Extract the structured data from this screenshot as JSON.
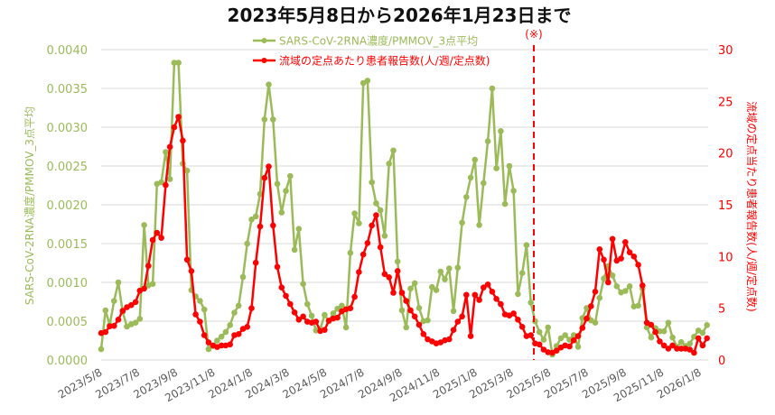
{
  "page": {
    "title": "2023年5月8日から2026年1月23日まで"
  },
  "legend": {
    "position": "top",
    "items": [
      {
        "label": "SARS-CoV-2RNA濃度/PMMOV_3点平均",
        "color": "#9BBB59"
      },
      {
        "label": "流域の定点あたり患者報告数(人/週/定点数)",
        "color": "#FF0000"
      }
    ]
  },
  "chart_data": {
    "type": "line",
    "title": "2023年5月8日から2026年1月23日まで",
    "grid": true,
    "legend_position": "top",
    "x_tick_labels": [
      "2023/5/8",
      "2023/7/8",
      "2023/9/8",
      "2023/11/8",
      "2024/1/8",
      "2024/3/8",
      "2024/5/8",
      "2024/7/8",
      "2024/9/8",
      "2024/11/8",
      "2025/1/8",
      "2025/3/8",
      "2025/5/8",
      "2025/7/8",
      "2025/9/8",
      "2025/11/8",
      "2026/1/8"
    ],
    "y_left": {
      "label": "SARS-CoV-2RNA濃度/PMMOV_3点平均",
      "range": [
        0,
        0.004
      ],
      "tick_labels": [
        "0.0000",
        "0.0005",
        "0.0010",
        "0.0015",
        "0.0020",
        "0.0025",
        "0.0030",
        "0.0035",
        "0.0040"
      ],
      "color": "#9BBB59"
    },
    "y_right": {
      "label": "流域の定点当たり患者報告数(人/週/定点数)",
      "range": [
        0,
        30
      ],
      "tick_labels": [
        "0",
        "5",
        "10",
        "15",
        "20",
        "25",
        "30"
      ],
      "color": "#FF0000"
    },
    "annotations": [
      {
        "type": "vline",
        "label": "(※)",
        "x": "2025/4/12",
        "style": "dashed",
        "color": "#FF0000"
      }
    ],
    "x": [
      "2023/5/8",
      "2023/5/15",
      "2023/5/22",
      "2023/5/29",
      "2023/6/5",
      "2023/6/12",
      "2023/6/19",
      "2023/6/26",
      "2023/7/3",
      "2023/7/10",
      "2023/7/17",
      "2023/7/24",
      "2023/7/31",
      "2023/8/7",
      "2023/8/14",
      "2023/8/21",
      "2023/8/28",
      "2023/9/4",
      "2023/9/11",
      "2023/9/18",
      "2023/9/25",
      "2023/10/2",
      "2023/10/9",
      "2023/10/16",
      "2023/10/23",
      "2023/10/30",
      "2023/11/6",
      "2023/11/13",
      "2023/11/20",
      "2023/11/27",
      "2023/12/4",
      "2023/12/11",
      "2023/12/18",
      "2023/12/25",
      "2024/1/1",
      "2024/1/8",
      "2024/1/15",
      "2024/1/22",
      "2024/1/29",
      "2024/2/5",
      "2024/2/12",
      "2024/2/19",
      "2024/2/26",
      "2024/3/4",
      "2024/3/11",
      "2024/3/18",
      "2024/3/25",
      "2024/4/1",
      "2024/4/8",
      "2024/4/15",
      "2024/4/22",
      "2024/4/29",
      "2024/5/6",
      "2024/5/13",
      "2024/5/20",
      "2024/5/27",
      "2024/6/3",
      "2024/6/10",
      "2024/6/17",
      "2024/6/24",
      "2024/7/1",
      "2024/7/8",
      "2024/7/15",
      "2024/7/22",
      "2024/7/29",
      "2024/8/5",
      "2024/8/12",
      "2024/8/19",
      "2024/8/26",
      "2024/9/2",
      "2024/9/9",
      "2024/9/16",
      "2024/9/23",
      "2024/9/30",
      "2024/10/7",
      "2024/10/14",
      "2024/10/21",
      "2024/10/28",
      "2024/11/4",
      "2024/11/11",
      "2024/11/18",
      "2024/11/25",
      "2024/12/2",
      "2024/12/9",
      "2024/12/16",
      "2024/12/23",
      "2024/12/30",
      "2025/1/6",
      "2025/1/13",
      "2025/1/20",
      "2025/1/27",
      "2025/2/3",
      "2025/2/10",
      "2025/2/17",
      "2025/2/24",
      "2025/3/3",
      "2025/3/10",
      "2025/3/17",
      "2025/3/24",
      "2025/3/31",
      "2025/4/7",
      "2025/4/14",
      "2025/4/21",
      "2025/4/28",
      "2025/5/5",
      "2025/5/12",
      "2025/5/19",
      "2025/5/26",
      "2025/6/2",
      "2025/6/9",
      "2025/6/16",
      "2025/6/23",
      "2025/6/30",
      "2025/7/7",
      "2025/7/14",
      "2025/7/21",
      "2025/7/28",
      "2025/8/4",
      "2025/8/11",
      "2025/8/18",
      "2025/8/25",
      "2025/9/1",
      "2025/9/8",
      "2025/9/15",
      "2025/9/22",
      "2025/9/29",
      "2025/10/6",
      "2025/10/13",
      "2025/10/20",
      "2025/10/27",
      "2025/11/3",
      "2025/11/10",
      "2025/11/17",
      "2025/11/24",
      "2025/12/1",
      "2025/12/8",
      "2025/12/15",
      "2025/12/22",
      "2025/12/29",
      "2026/1/5",
      "2026/1/12",
      "2026/1/19"
    ],
    "series": [
      {
        "name": "SARS-CoV-2RNA濃度/PMMOV_3点平均",
        "axis": "left",
        "color": "#9BBB59",
        "values": [
          0.00014,
          0.00064,
          0.00045,
          0.00076,
          0.001,
          0.00062,
          0.00043,
          0.00046,
          0.00048,
          0.00053,
          0.00174,
          0.00096,
          0.00098,
          0.00227,
          0.00229,
          0.00268,
          0.00233,
          0.00383,
          0.00383,
          0.00253,
          0.00244,
          0.0009,
          0.00082,
          0.00076,
          0.00065,
          0.00014,
          0.00018,
          0.00025,
          0.0003,
          0.00036,
          0.00045,
          0.00061,
          0.0007,
          0.00107,
          0.0015,
          0.00181,
          0.00185,
          0.00214,
          0.0031,
          0.00355,
          0.0031,
          0.00227,
          0.0019,
          0.00218,
          0.00237,
          0.00142,
          0.00169,
          0.00098,
          0.00072,
          0.00057,
          0.00038,
          0.0004,
          0.00058,
          0.0005,
          0.0006,
          0.00066,
          0.0007,
          0.00042,
          0.00138,
          0.00189,
          0.00176,
          0.00357,
          0.0036,
          0.00229,
          0.00202,
          0.00193,
          0.0016,
          0.00253,
          0.0027,
          0.00127,
          0.00064,
          0.00042,
          0.00092,
          0.00099,
          0.00067,
          0.0005,
          0.00051,
          0.00094,
          0.0009,
          0.00114,
          0.00104,
          0.00118,
          0.00063,
          0.00119,
          0.00177,
          0.0021,
          0.00235,
          0.00258,
          0.00174,
          0.00228,
          0.00282,
          0.0035,
          0.00247,
          0.00295,
          0.00201,
          0.0025,
          0.00218,
          0.00085,
          0.00112,
          0.00148,
          0.00074,
          0.0005,
          0.00036,
          0.00026,
          0.00042,
          7e-05,
          0.00018,
          0.00028,
          0.00032,
          0.00026,
          0.00032,
          0.00017,
          0.00054,
          0.00067,
          0.00051,
          0.00048,
          0.0008,
          0.00105,
          0.00121,
          0.00109,
          0.00095,
          0.00087,
          0.00089,
          0.00095,
          0.00069,
          0.0007,
          0.00092,
          0.00042,
          0.00029,
          0.00041,
          0.00037,
          0.00037,
          0.00048,
          0.00029,
          0.00017,
          0.00023,
          0.00018,
          0.00021,
          0.0003,
          0.00038,
          0.00035,
          0.00045
        ]
      },
      {
        "name": "流域の定点あたり患者報告数(人/週/定点数)",
        "axis": "right",
        "color": "#FF0000",
        "values": [
          2.6,
          2.7,
          3.25,
          3.3,
          3.9,
          4.75,
          5.1,
          5.3,
          5.6,
          6.7,
          6.9,
          9.1,
          11.6,
          12.3,
          11.8,
          16.9,
          20.6,
          22.5,
          23.5,
          21.2,
          9.7,
          8.6,
          4.4,
          3.7,
          2.4,
          1.7,
          1.4,
          1.25,
          1.4,
          1.4,
          1.5,
          2.4,
          2.5,
          3.0,
          3.2,
          5.0,
          9.4,
          12.9,
          17.6,
          18.7,
          13.0,
          9.0,
          7.0,
          6.2,
          5.4,
          4.6,
          3.9,
          4.2,
          3.7,
          3.6,
          3.7,
          2.8,
          2.9,
          3.8,
          4.0,
          4.1,
          4.7,
          4.9,
          5.0,
          6.1,
          8.5,
          10.2,
          11.3,
          13.0,
          14.0,
          10.9,
          8.3,
          8.0,
          6.5,
          8.6,
          6.5,
          5.7,
          4.8,
          4.2,
          3.4,
          2.5,
          2.0,
          1.8,
          1.6,
          1.7,
          1.9,
          2.0,
          2.9,
          3.7,
          4.2,
          6.3,
          2.3,
          6.3,
          5.8,
          7.0,
          7.3,
          6.6,
          5.9,
          5.4,
          4.4,
          4.3,
          4.5,
          3.9,
          3.2,
          2.3,
          2.4,
          1.6,
          1.5,
          1.0,
          0.75,
          0.7,
          0.9,
          1.2,
          1.4,
          1.3,
          1.9,
          2.3,
          3.1,
          4.0,
          5.2,
          6.6,
          10.7,
          9.7,
          7.5,
          11.7,
          9.6,
          9.8,
          11.4,
          10.4,
          10.0,
          9.2,
          7.2,
          3.6,
          3.4,
          2.7,
          1.8,
          1.4,
          1.1,
          1.4,
          1.1,
          1.1,
          1.1,
          1.0,
          0.7,
          2.1,
          1.4,
          2.1
        ]
      }
    ]
  }
}
